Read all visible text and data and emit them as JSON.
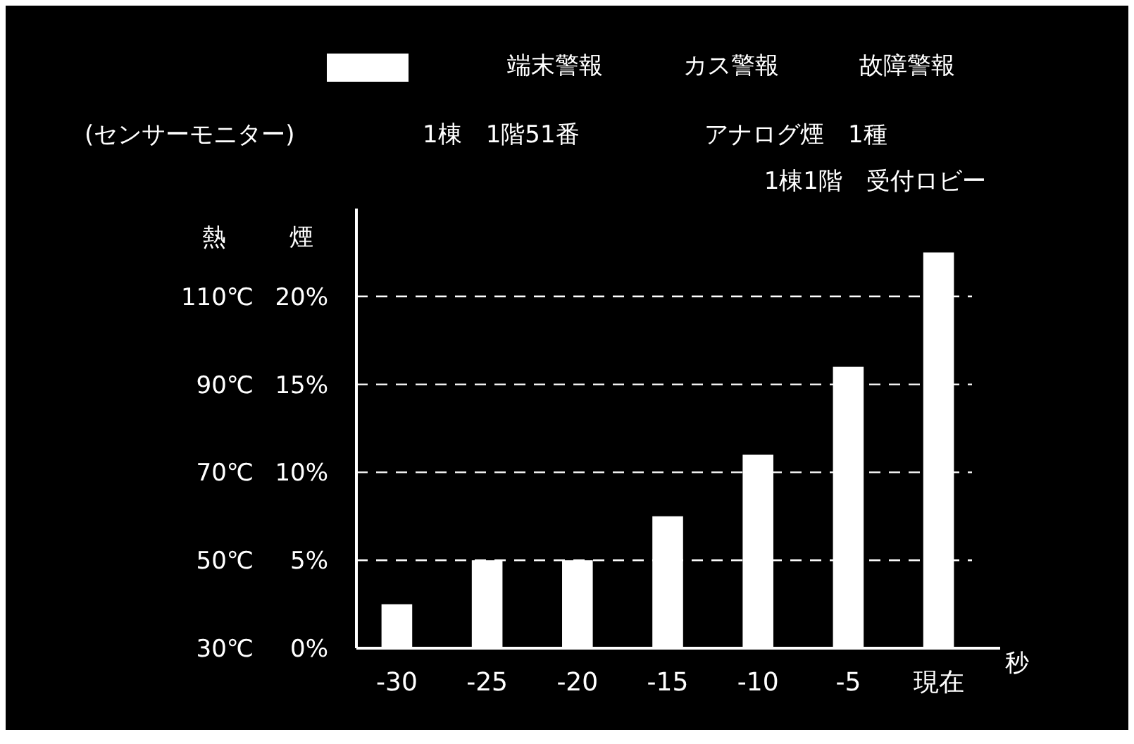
{
  "chart_data": {
    "type": "bar",
    "xlabel": "秒",
    "ylabel": "煙",
    "y2label": "熱",
    "categories": [
      "-30",
      "-25",
      "-20",
      "-15",
      "-10",
      "-5",
      "現在"
    ],
    "series": [
      {
        "color": "#ffffff",
        "values": [
          2.5,
          5,
          5,
          7.5,
          11,
          16,
          22.5
        ]
      }
    ],
    "ylim": [
      0,
      25
    ],
    "yticks": [
      {
        "value": 0,
        "label": "0%"
      },
      {
        "value": 5,
        "label": "5%"
      },
      {
        "value": 10,
        "label": "10%"
      },
      {
        "value": 15,
        "label": "15%"
      },
      {
        "value": 20,
        "label": "20%"
      }
    ],
    "y2lim": [
      30,
      130
    ],
    "y2ticks": [
      {
        "value": 30,
        "label": "30℃"
      },
      {
        "value": 50,
        "label": "50℃"
      },
      {
        "value": 70,
        "label": "70℃"
      },
      {
        "value": 90,
        "label": "90℃"
      },
      {
        "value": 110,
        "label": "110℃"
      }
    ],
    "grid": "y",
    "line_style": "dashed",
    "annotations": [
      "端末警報",
      "カス警報",
      "故障警報",
      "(センサーモニター)",
      "1棟　1階51番",
      "アナログ煙　1種",
      "1棟1階　受付ロビー"
    ]
  }
}
